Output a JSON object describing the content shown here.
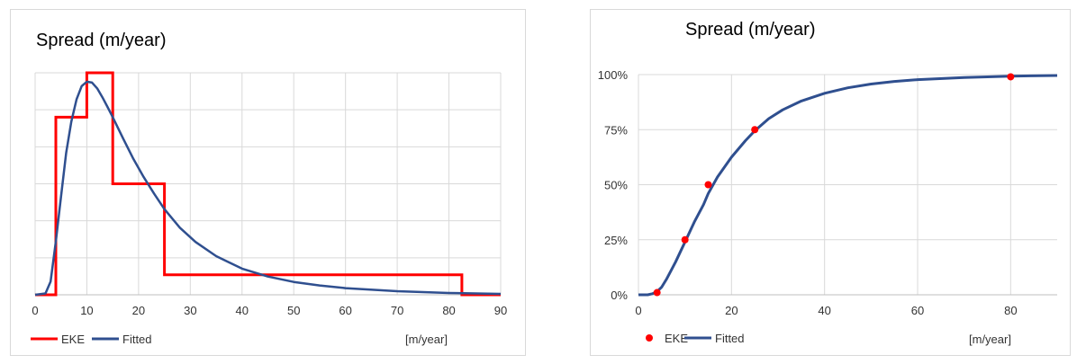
{
  "chart_data": [
    {
      "type": "line",
      "title": "Spread (m/year)",
      "xlabel": "[m/year]",
      "ylabel": "",
      "x_ticks": [
        "0",
        "10",
        "20",
        "30",
        "40",
        "50",
        "60",
        "70",
        "80",
        "90"
      ],
      "xlim": [
        0,
        90
      ],
      "ylim": [
        0,
        0.05
      ],
      "y_tick_labels_shown": false,
      "grid": true,
      "legend": "bottom-left",
      "series": [
        {
          "name": "EKE",
          "color": "#ff0000",
          "kind": "step",
          "x": [
            0,
            4,
            4,
            10,
            10,
            15,
            15,
            25,
            25,
            82.5,
            82.5,
            90
          ],
          "y": [
            0,
            0,
            0.04,
            0.04,
            0.05,
            0.05,
            0.025,
            0.025,
            0.0045,
            0.0045,
            0,
            0
          ]
        },
        {
          "name": "Fitted",
          "color": "#2f4f8f",
          "kind": "line",
          "x": [
            0,
            2,
            3,
            4,
            5,
            6,
            7,
            8,
            9,
            10,
            11,
            12,
            13,
            14,
            15,
            17,
            19,
            21,
            23,
            25,
            28,
            31,
            35,
            40,
            45,
            50,
            55,
            60,
            70,
            80,
            90
          ],
          "y": [
            0,
            0.0003,
            0.003,
            0.012,
            0.022,
            0.032,
            0.039,
            0.044,
            0.047,
            0.048,
            0.0478,
            0.0465,
            0.0445,
            0.0423,
            0.04,
            0.0352,
            0.0306,
            0.0265,
            0.0228,
            0.0193,
            0.0151,
            0.0119,
            0.0087,
            0.0059,
            0.0041,
            0.0029,
            0.0021,
            0.0015,
            0.0008,
            0.0004,
            0.0002
          ]
        }
      ]
    },
    {
      "type": "line",
      "title": "Spread (m/year)",
      "xlabel": "[m/year]",
      "ylabel": "",
      "x_ticks": [
        "0",
        "20",
        "40",
        "60",
        "80"
      ],
      "y_ticks": [
        "0%",
        "25%",
        "50%",
        "75%",
        "100%"
      ],
      "xlim": [
        0,
        90
      ],
      "ylim": [
        0,
        1
      ],
      "grid": true,
      "legend": "bottom-left",
      "series": [
        {
          "name": "EKE",
          "color": "#ff0000",
          "kind": "scatter",
          "x": [
            4,
            10,
            15,
            25,
            80
          ],
          "y": [
            0.01,
            0.25,
            0.5,
            0.75,
            0.99
          ]
        },
        {
          "name": "Fitted",
          "color": "#2f4f8f",
          "kind": "line",
          "x": [
            0,
            2,
            3,
            4,
            5,
            6,
            7,
            8,
            10,
            12,
            14,
            15,
            17,
            20,
            23,
            25,
            28,
            31,
            35,
            40,
            45,
            50,
            55,
            60,
            70,
            80,
            90
          ],
          "y": [
            0,
            0.0,
            0.005,
            0.015,
            0.035,
            0.07,
            0.11,
            0.15,
            0.24,
            0.33,
            0.41,
            0.46,
            0.535,
            0.625,
            0.7,
            0.745,
            0.8,
            0.84,
            0.88,
            0.915,
            0.94,
            0.957,
            0.969,
            0.977,
            0.987,
            0.993,
            0.996
          ]
        }
      ]
    }
  ]
}
